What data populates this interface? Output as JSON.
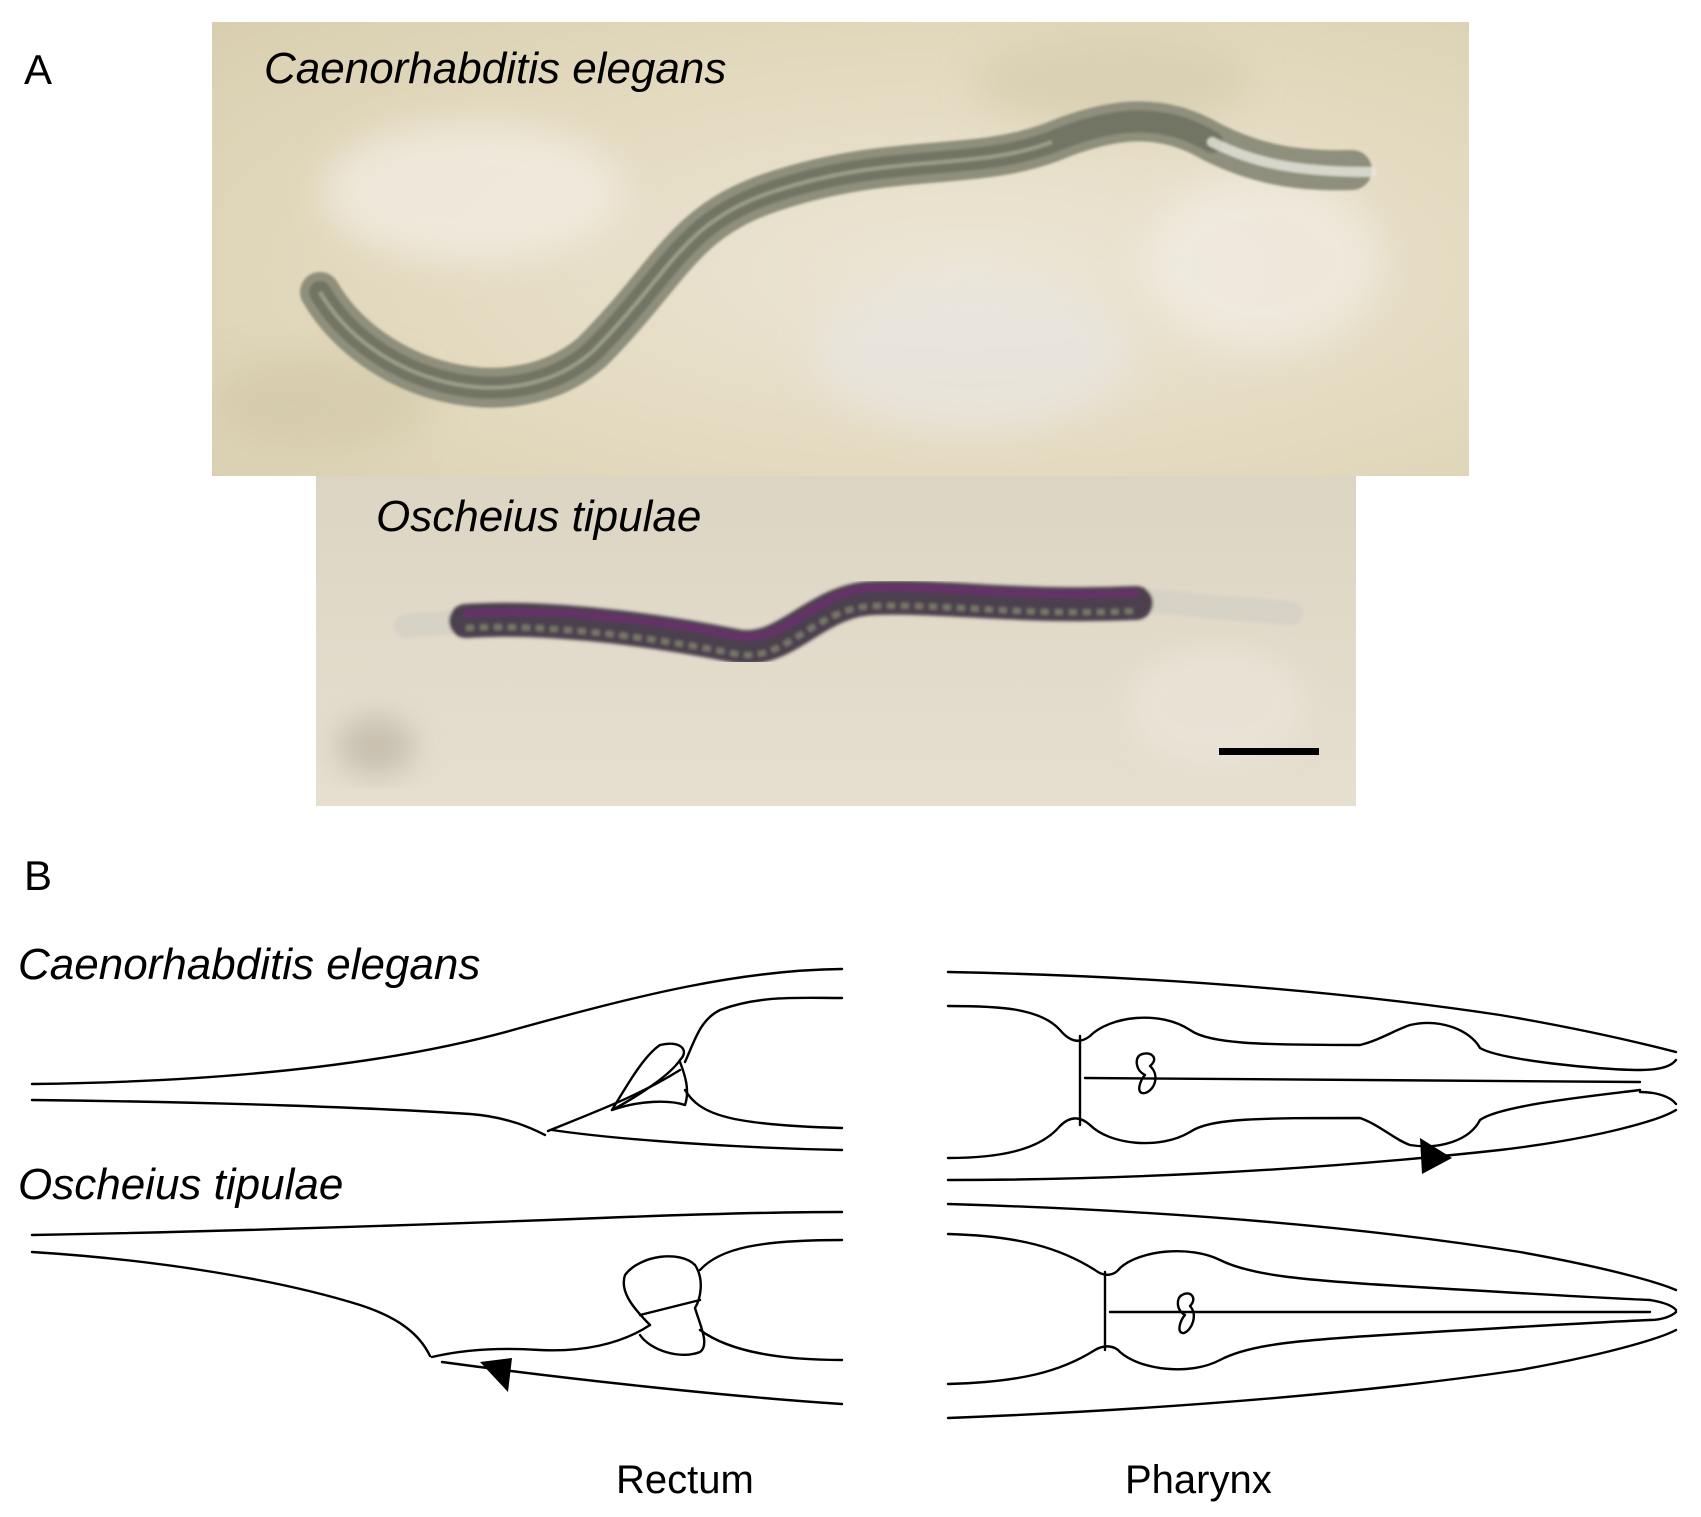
{
  "panel_a": {
    "letter": "A",
    "photo_top_label": "Caenorhabditis elegans",
    "photo_bottom_label": "Oscheius tipulae"
  },
  "panel_b": {
    "letter": "B",
    "row_top_label": "Caenorhabditis elegans",
    "row_bottom_label": "Oscheius tipulae",
    "caption_left": "Rectum",
    "caption_right": "Pharynx"
  },
  "colors": {
    "photo_background": "#e6dcc2",
    "worm_ce": "#7d806d",
    "worm_ot": "#4a3a4a",
    "worm_ot_stain": "#6a2e6a",
    "scale_bar": "#000000",
    "line_art": "#000000"
  }
}
